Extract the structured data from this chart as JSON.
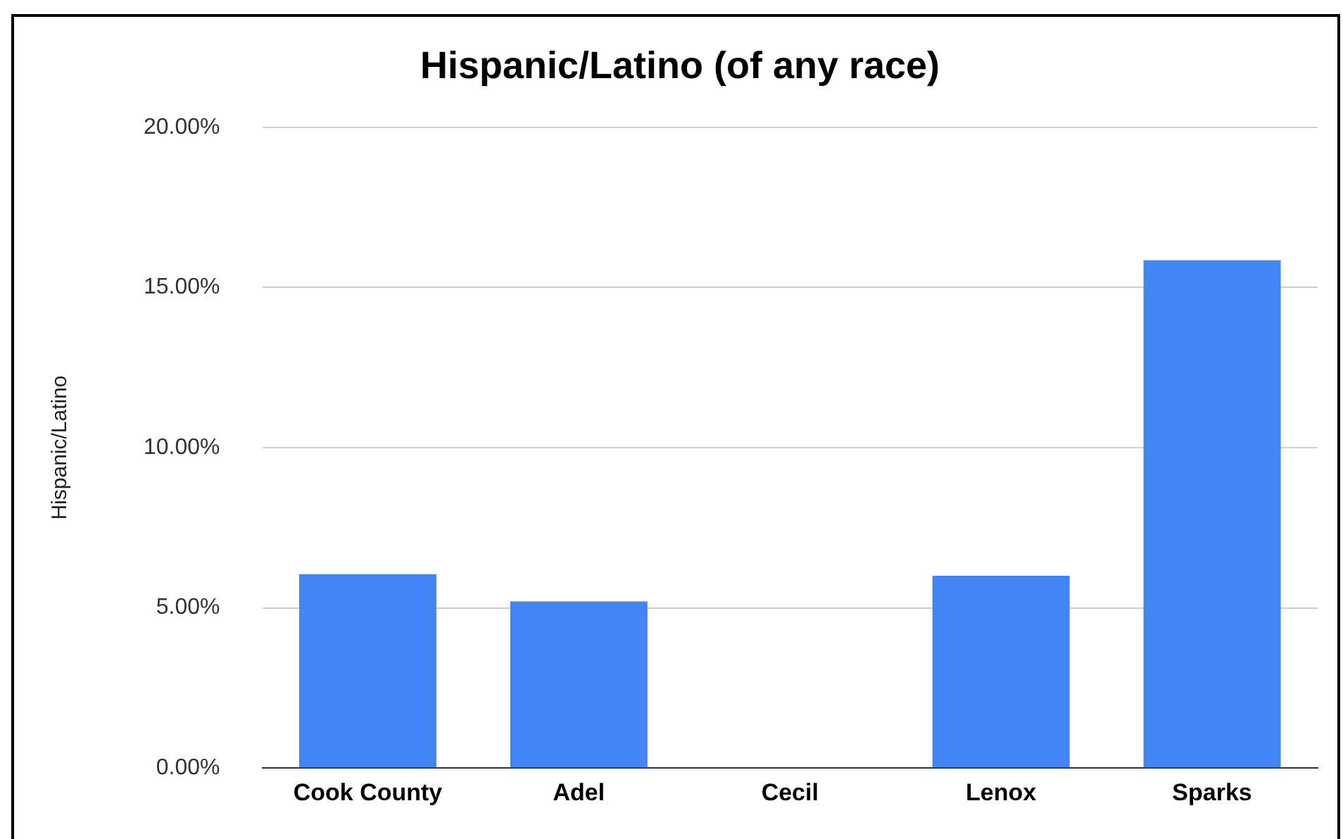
{
  "chart_data": {
    "type": "bar",
    "title": "Hispanic/Latino (of any race)",
    "ylabel": "Hispanic/Latino",
    "categories": [
      "Cook County",
      "Adel",
      "Cecil",
      "Lenox",
      "Sparks"
    ],
    "values": [
      6.05,
      5.2,
      0,
      6.0,
      15.85
    ],
    "color": "#4285f4",
    "ylim": [
      0,
      20
    ],
    "yticks": [
      {
        "value": 0,
        "label": "0.00%"
      },
      {
        "value": 5,
        "label": "5.00%"
      },
      {
        "value": 10,
        "label": "10.00%"
      },
      {
        "value": 15,
        "label": "15.00%"
      },
      {
        "value": 20,
        "label": "20.00%"
      }
    ],
    "grid": "y",
    "legend": false
  }
}
